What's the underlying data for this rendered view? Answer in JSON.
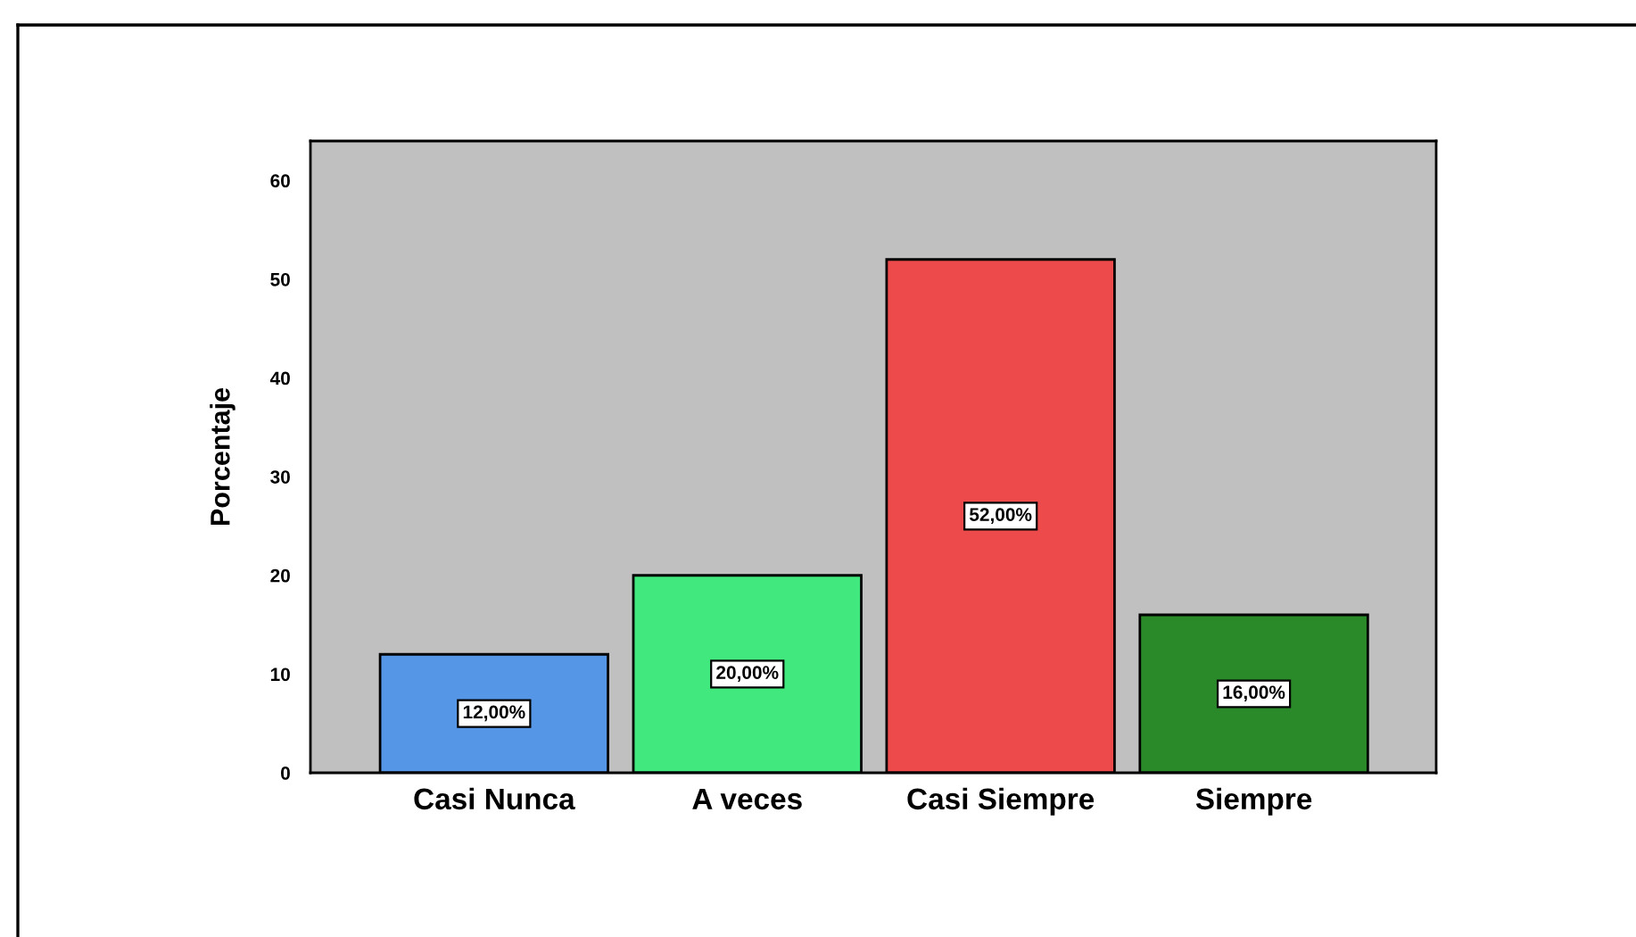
{
  "chart_data": {
    "type": "bar",
    "ylabel": "Porcentaje",
    "categories": [
      "Casi Nunca",
      "A veces",
      "Casi Siempre",
      "Siempre"
    ],
    "values": [
      12,
      20,
      52,
      16
    ],
    "colors": [
      "#5596e6",
      "#41e87d",
      "#ed4b4b",
      "#2a8a2a"
    ],
    "value_labels": [
      "12,00%",
      "20,00%",
      "52,00%",
      "16,00%"
    ],
    "ylim": [
      0,
      64
    ],
    "yticks": [
      0,
      10,
      20,
      30,
      40,
      50,
      60
    ],
    "grid": false,
    "legend": false
  }
}
